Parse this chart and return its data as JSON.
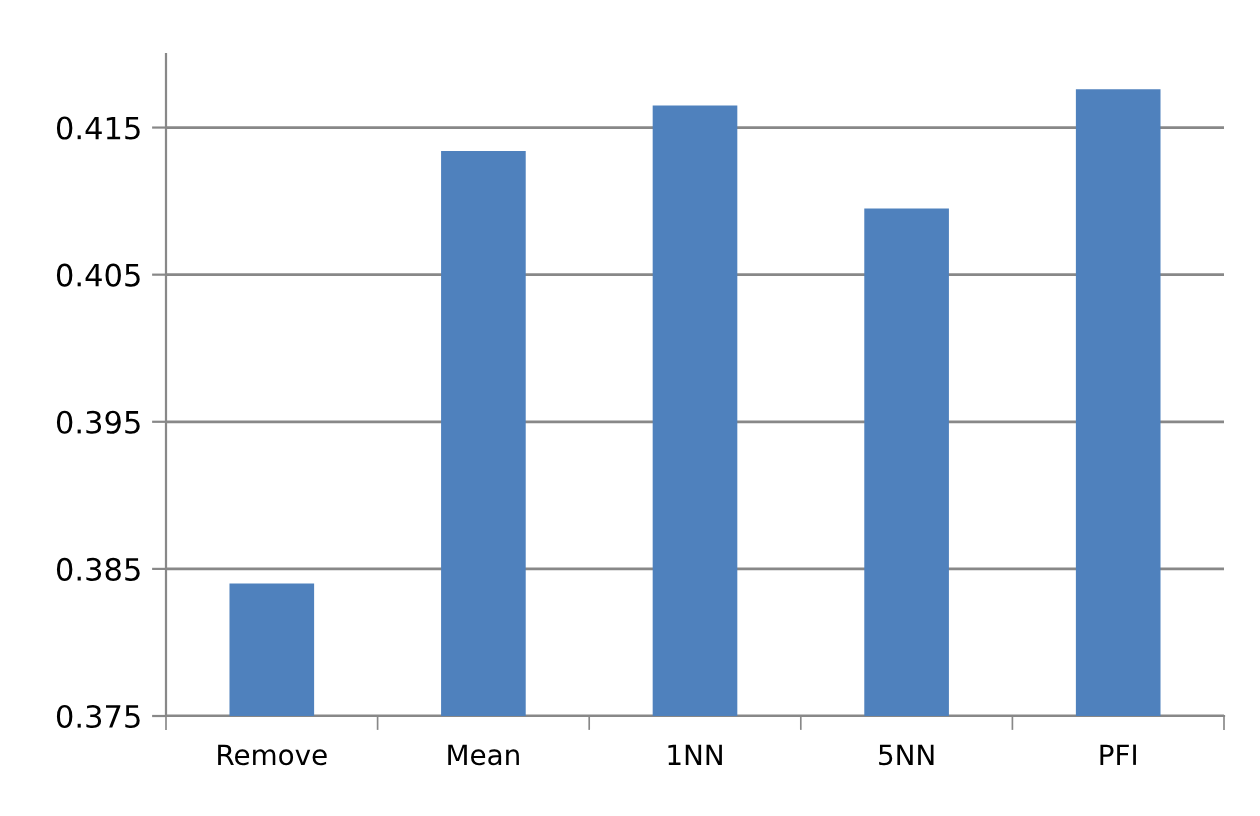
{
  "chart_data": {
    "type": "bar",
    "categories": [
      "Remove",
      "Mean",
      "1NN",
      "5NN",
      "PFI"
    ],
    "values": [
      0.384,
      0.4134,
      0.4165,
      0.4095,
      0.4176
    ],
    "color": "#4f81bd",
    "ylim": [
      0.375,
      0.42
    ],
    "yticks": [
      0.375,
      0.385,
      0.395,
      0.405,
      0.415
    ],
    "grid": "y",
    "legend": false
  }
}
